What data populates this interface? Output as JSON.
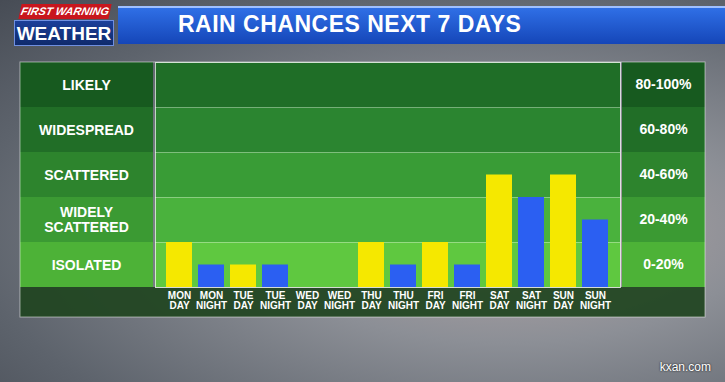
{
  "chart_data": {
    "type": "bar",
    "title": "RAIN CHANCES NEXT 7 DAYS",
    "logo_text": [
      "FIRST WARNING",
      "WEATHER"
    ],
    "credit": "kxan.com",
    "categories": [
      "MON\nDAY",
      "MON\nNIGHT",
      "TUE\nDAY",
      "TUE\nNIGHT",
      "WED\nDAY",
      "WED\nNIGHT",
      "THU\nDAY",
      "THU\nNIGHT",
      "FRI\nDAY",
      "FRI\nNIGHT",
      "SAT\nDAY",
      "SAT\nNIGHT",
      "SUN\nDAY",
      "SUN\nNIGHT"
    ],
    "values": [
      20,
      10,
      10,
      10,
      0,
      0,
      20,
      10,
      20,
      10,
      50,
      40,
      50,
      30
    ],
    "colors": [
      "#f5e800",
      "#2b5ff2",
      "#f5e800",
      "#2b5ff2",
      "#f5e800",
      "#2b5ff2",
      "#f5e800",
      "#2b5ff2",
      "#f5e800",
      "#2b5ff2",
      "#f5e800",
      "#2b5ff2",
      "#f5e800",
      "#2b5ff2"
    ],
    "bands": [
      {
        "label": "LIKELY",
        "range_label": "80-100%",
        "from": 80,
        "to": 100
      },
      {
        "label": "WIDESPREAD",
        "range_label": "60-80%",
        "from": 60,
        "to": 80
      },
      {
        "label": "SCATTERED",
        "range_label": "40-60%",
        "from": 40,
        "to": 60
      },
      {
        "label": "WIDELY\nSCATTERED",
        "range_label": "20-40%",
        "from": 20,
        "to": 40
      },
      {
        "label": "ISOLATED",
        "range_label": "0-20%",
        "from": 0,
        "to": 20
      }
    ],
    "ylim": [
      0,
      100
    ],
    "yticks": [
      0,
      20,
      40,
      60,
      80,
      100
    ],
    "grid": true,
    "tick_labels": "x"
  }
}
